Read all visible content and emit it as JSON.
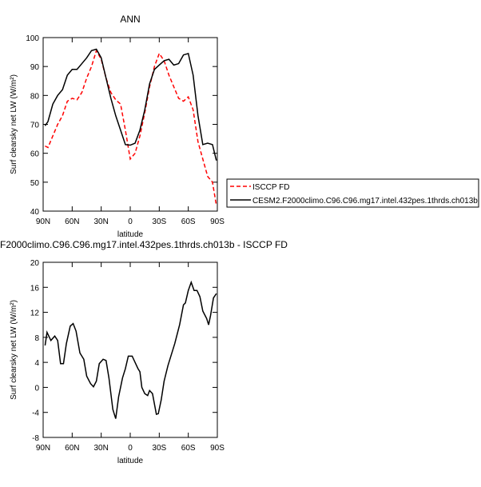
{
  "chart_data": [
    {
      "type": "line",
      "title": "ANN",
      "x_label": "latitude",
      "y_label": "Surf clearsky net LW (W/m²)",
      "x": [
        88,
        85,
        80,
        75,
        70,
        65,
        60,
        55,
        50,
        45,
        40,
        35,
        30,
        25,
        20,
        15,
        10,
        5,
        0,
        -5,
        -10,
        -15,
        -20,
        -25,
        -30,
        -35,
        -40,
        -45,
        -50,
        -55,
        -60,
        -65,
        -70,
        -75,
        -80,
        -85,
        -89
      ],
      "series": [
        {
          "name": "ISCCP FD",
          "color": "#ff0000",
          "linestyle": "dashed",
          "values": [
            62.5,
            62,
            66,
            70,
            73,
            78,
            79,
            78.5,
            81,
            86,
            90,
            95.5,
            92.5,
            86,
            81,
            78.5,
            77,
            68,
            58,
            60,
            66,
            74,
            83,
            90,
            94.5,
            92,
            87,
            83,
            79,
            78,
            79.5,
            75,
            64,
            58,
            52,
            50,
            42
          ]
        },
        {
          "name": "CESM2.F2000climo.C96.C96.mg17.intel.432pes.1thrds.ch013b",
          "color": "#000000",
          "linestyle": "solid",
          "values": [
            69.5,
            71,
            77,
            80,
            82,
            87,
            89,
            89,
            91,
            93,
            95.5,
            96,
            93,
            86,
            79,
            73,
            68,
            63,
            62.8,
            63.5,
            68,
            75,
            84,
            89,
            90.5,
            92,
            92.5,
            90.5,
            91,
            94,
            94.5,
            87,
            73,
            63,
            63.5,
            63,
            57.5
          ]
        }
      ],
      "xlim": [
        90,
        -90
      ],
      "xticks": [
        {
          "value": 90,
          "label": "90N"
        },
        {
          "value": 60,
          "label": "60N"
        },
        {
          "value": 30,
          "label": "30N"
        },
        0,
        {
          "value": -30,
          "label": "30S"
        },
        {
          "value": -60,
          "label": "60S"
        },
        {
          "value": -90,
          "label": "90S"
        }
      ],
      "ylim": [
        40,
        100
      ],
      "yticks": [
        40,
        50,
        60,
        70,
        80,
        90,
        100
      ]
    },
    {
      "type": "line",
      "title": "F2000climo.C96.C96.mg17.intel.432pes.1thrds.ch013b - ISCCP FD",
      "x_label": "latitude",
      "y_label": "Surf clearsky net LW (W/m²)",
      "x": [
        88,
        86,
        82,
        78,
        75,
        72,
        69,
        66,
        62,
        59,
        56,
        52,
        48,
        45,
        41,
        38,
        35,
        32,
        28,
        25,
        22,
        18,
        15,
        12,
        8,
        5,
        2,
        -2,
        -5,
        -8,
        -10,
        -12,
        -15,
        -18,
        -20,
        -23,
        -27,
        -29,
        -32,
        -35,
        -39,
        -42,
        -46,
        -51,
        -55,
        -57,
        -60,
        -63,
        -66,
        -69,
        -72,
        -75,
        -79,
        -81,
        -83,
        -86,
        -89
      ],
      "series": [
        {
          "color": "#000000",
          "linestyle": "solid",
          "values": [
            6.7,
            8.8,
            7.5,
            8.2,
            7.5,
            3.8,
            3.8,
            7,
            9.8,
            10.2,
            9,
            5.5,
            4.5,
            1.8,
            0.6,
            0.1,
            1,
            3.8,
            4.5,
            4.3,
            1.5,
            -3.5,
            -5,
            -1.5,
            1.5,
            3,
            5,
            5,
            4,
            3,
            2.5,
            0,
            -1,
            -1.3,
            -0.5,
            -1,
            -4.3,
            -4.2,
            -2,
            1,
            3.5,
            5,
            7,
            10,
            13.2,
            13.5,
            15.5,
            16.8,
            15.5,
            15.5,
            14.5,
            12.2,
            11,
            10,
            11.5,
            14.3,
            15
          ]
        }
      ],
      "xlim": [
        90,
        -90
      ],
      "xticks": [
        {
          "value": 90,
          "label": "90N"
        },
        {
          "value": 60,
          "label": "60N"
        },
        {
          "value": 30,
          "label": "30N"
        },
        0,
        {
          "value": -30,
          "label": "30S"
        },
        {
          "value": -60,
          "label": "60S"
        },
        {
          "value": -90,
          "label": "90S"
        }
      ],
      "ylim": [
        -8,
        20
      ],
      "yticks": [
        -8,
        -4,
        0,
        4,
        8,
        12,
        16,
        20
      ]
    }
  ]
}
